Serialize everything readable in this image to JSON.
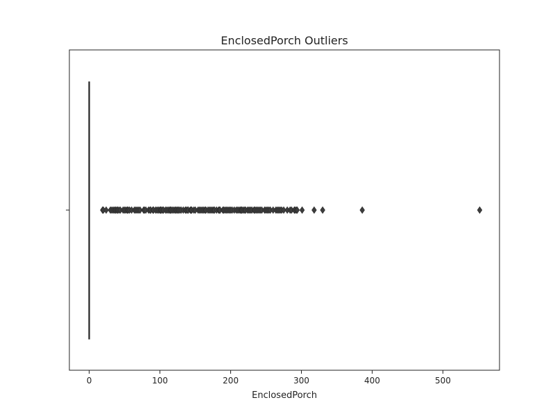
{
  "chart_data": {
    "type": "box",
    "orientation": "horizontal",
    "title": "EnclosedPorch Outliers",
    "xlabel": "EnclosedPorch",
    "ylabel": "",
    "xlim": [
      -28,
      580
    ],
    "xticks": [
      0,
      100,
      200,
      300,
      400,
      500
    ],
    "box": {
      "min": 0,
      "q1": 0,
      "median": 0,
      "q3": 0,
      "max": 0
    },
    "outliers": [
      19,
      20,
      24,
      30,
      32,
      34,
      36,
      37,
      39,
      40,
      42,
      44,
      48,
      50,
      52,
      54,
      55,
      57,
      60,
      64,
      66,
      68,
      70,
      72,
      77,
      78,
      80,
      84,
      86,
      87,
      90,
      91,
      94,
      96,
      98,
      100,
      101,
      102,
      104,
      105,
      108,
      110,
      112,
      114,
      115,
      116,
      118,
      120,
      122,
      123,
      125,
      126,
      128,
      130,
      133,
      136,
      137,
      139,
      140,
      143,
      144,
      145,
      148,
      150,
      154,
      156,
      158,
      160,
      162,
      164,
      165,
      168,
      170,
      172,
      174,
      176,
      177,
      180,
      183,
      184,
      185,
      189,
      190,
      192,
      194,
      196,
      198,
      200,
      202,
      205,
      208,
      210,
      212,
      214,
      215,
      216,
      218,
      220,
      221,
      224,
      226,
      228,
      230,
      233,
      234,
      236,
      238,
      240,
      242,
      244,
      248,
      250,
      252,
      254,
      256,
      260,
      264,
      266,
      268,
      270,
      272,
      275,
      280,
      284,
      286,
      290,
      291,
      293,
      294,
      301,
      318,
      330,
      386,
      552
    ]
  }
}
